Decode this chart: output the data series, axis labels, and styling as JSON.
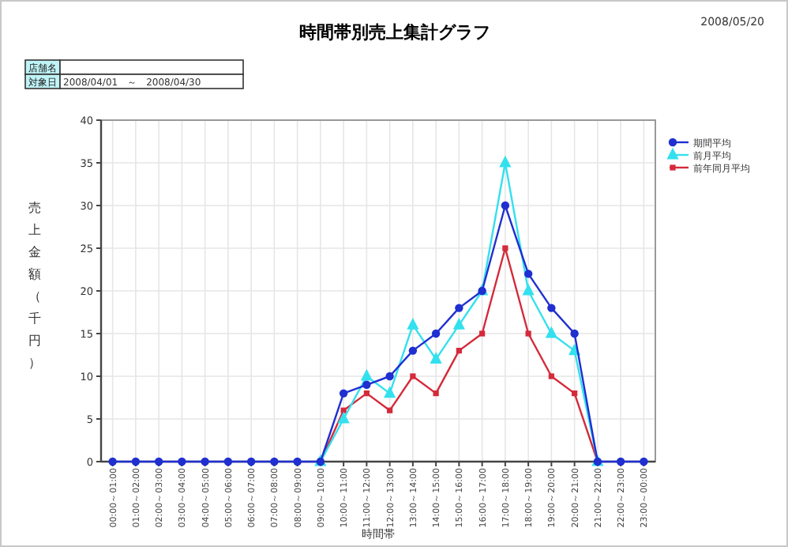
{
  "chart_data": {
    "type": "line",
    "title": "時間帯別売上集計グラフ",
    "xlabel": "時間帯",
    "ylabel": "売上金額（千円）",
    "annotations": [
      "2008/05/20",
      "店舗名",
      "対象日",
      "2008/04/01　～　2008/04/30"
    ],
    "categories": [
      "00:00～01:00",
      "01:00～02:00",
      "02:00～03:00",
      "03:00～04:00",
      "04:00～05:00",
      "05:00～06:00",
      "06:00～07:00",
      "07:00～08:00",
      "08:00～09:00",
      "09:00～10:00",
      "10:00～11:00",
      "11:00～12:00",
      "12:00～13:00",
      "13:00～14:00",
      "14:00～15:00",
      "15:00～16:00",
      "16:00～17:00",
      "17:00～18:00",
      "18:00～19:00",
      "19:00～20:00",
      "20:00～21:00",
      "21:00～22:00",
      "22:00～23:00",
      "23:00～00:00"
    ],
    "series": [
      {
        "name": "前年同月平均",
        "color": "#d42a3a",
        "marker": "square",
        "values": [
          null,
          null,
          null,
          null,
          null,
          null,
          null,
          null,
          null,
          0,
          6,
          8,
          6,
          10,
          8,
          13,
          15,
          25,
          15,
          10,
          8,
          0,
          null,
          null
        ]
      },
      {
        "name": "前月平均",
        "color": "#33e0ee",
        "marker": "triangle",
        "values": [
          null,
          null,
          null,
          null,
          null,
          null,
          null,
          null,
          null,
          0,
          5,
          10,
          8,
          16,
          12,
          16,
          20,
          35,
          20,
          15,
          13,
          0,
          null,
          null
        ]
      },
      {
        "name": "期間平均",
        "color": "#1f2fd0",
        "marker": "circle",
        "values": [
          0,
          0,
          0,
          0,
          0,
          0,
          0,
          0,
          0,
          0,
          8,
          9,
          10,
          13,
          15,
          18,
          20,
          30,
          22,
          18,
          15,
          0,
          0,
          0
        ]
      }
    ],
    "ylim": [
      0,
      40
    ],
    "yticks": [
      0,
      5,
      10,
      15,
      20,
      25,
      30,
      35,
      40
    ],
    "grid": true,
    "legend": "right",
    "line_style": "solid"
  }
}
